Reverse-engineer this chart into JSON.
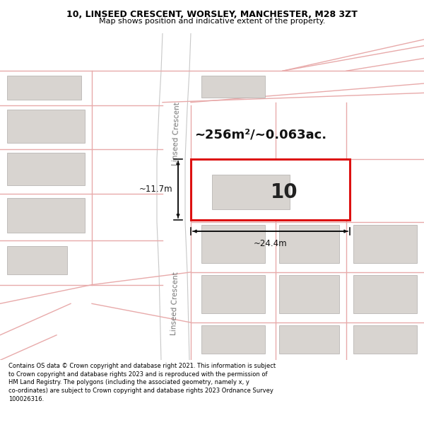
{
  "title_line1": "10, LINSEED CRESCENT, WORSLEY, MANCHESTER, M28 3ZT",
  "title_line2": "Map shows position and indicative extent of the property.",
  "footer_text": "Contains OS data © Crown copyright and database right 2021. This information is subject\nto Crown copyright and database rights 2023 and is reproduced with the permission of\nHM Land Registry. The polygons (including the associated geometry, namely x, y\nco-ordinates) are subject to Crown copyright and database rights 2023 Ordnance Survey\n100026316.",
  "bg_color": "#ffffff",
  "map_bg": "#ffffff",
  "title_bg": "#ffffff",
  "footer_bg": "#ffffff",
  "road_color": "#e8aaaa",
  "road_color2": "#c8c8c8",
  "plot_color": "#dd1111",
  "building_color": "#d8d4d0",
  "building_edge": "#b0acaa",
  "area_label": "~256m²/~0.063ac.",
  "width_label": "~24.4m",
  "height_label": "~11.7m",
  "plot_number": "10",
  "road_label": "Linseed Crescent",
  "annot_color": "#111111",
  "title_fontsize": 9.0,
  "subtitle_fontsize": 8.0,
  "footer_fontsize": 6.0,
  "area_fontsize": 13,
  "plot_num_fontsize": 20,
  "meas_fontsize": 8.5
}
